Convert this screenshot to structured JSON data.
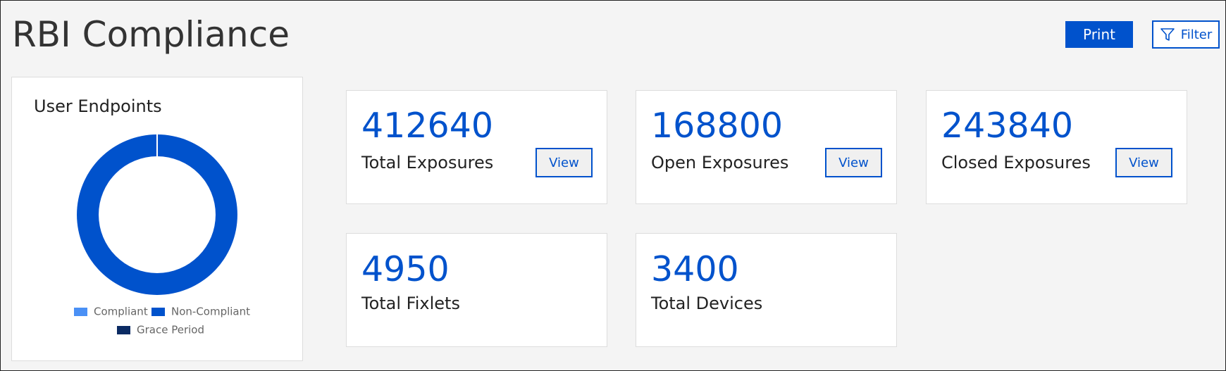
{
  "header": {
    "title": "RBI Compliance",
    "print_button": "Print",
    "filter_button": "Filter"
  },
  "chart_data": {
    "type": "donut",
    "title": "User Endpoints",
    "categories": [
      "Compliant",
      "Non-Compliant",
      "Grace Period"
    ],
    "values": [
      0,
      100,
      0
    ],
    "colors": [
      "#4a90f5",
      "#0052cc",
      "#0b2b63"
    ]
  },
  "cards": [
    {
      "value": 412640,
      "label": "Total Exposures",
      "button": "View"
    },
    {
      "value": 168800,
      "label": "Open Exposures",
      "button": "View"
    },
    {
      "value": 243840,
      "label": "Closed Exposures",
      "button": "View"
    },
    {
      "value": 4950,
      "label": "Total Fixlets"
    },
    {
      "value": 3400,
      "label": "Total Devices"
    }
  ]
}
